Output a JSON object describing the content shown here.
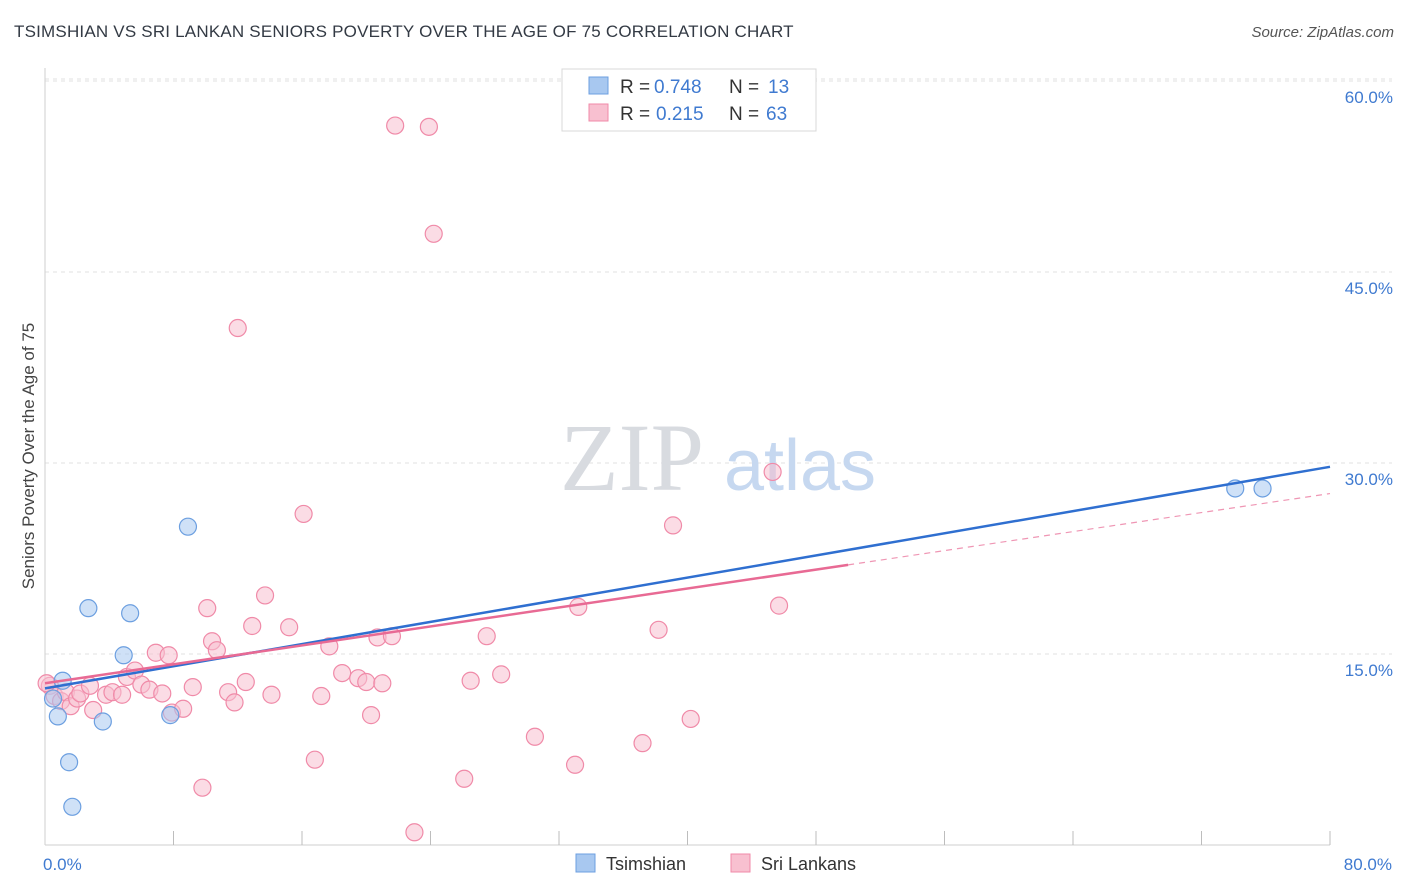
{
  "chart_data": {
    "type": "scatter",
    "title": "TSIMSHIAN VS SRI LANKAN SENIORS POVERTY OVER THE AGE OF 75 CORRELATION CHART",
    "source": "Source: ZipAtlas.com",
    "xlabel": "",
    "ylabel": "Seniors Poverty Over the Age of 75",
    "xlim": [
      0,
      80
    ],
    "ylim": [
      0,
      60
    ],
    "x_tick_labels": [
      "0.0%",
      "80.0%"
    ],
    "y_ticks": [
      15,
      30,
      45,
      60
    ],
    "y_tick_labels": [
      "15.0%",
      "30.0%",
      "45.0%",
      "60.0%"
    ],
    "watermark": {
      "zip": "ZIP",
      "atlas": "atlas"
    },
    "legend": {
      "r_label": "R =",
      "n_label": "N =",
      "entries": [
        {
          "name": "Tsimshian",
          "r": "0.748",
          "n": "13",
          "color": "#a8c8f0",
          "stroke": "#6c9fe0"
        },
        {
          "name": "Sri Lankans",
          "r": "0.215",
          "n": "63",
          "color": "#f8c0d0",
          "stroke": "#f08aa8"
        }
      ]
    },
    "series": [
      {
        "name": "Tsimshian",
        "color": "#a8c8f0",
        "stroke": "#6c9fe0",
        "trend": {
          "x0": 0,
          "y0": 12.3,
          "x1": 80,
          "y1": 29.7,
          "color": "#2f6fd0"
        },
        "points": [
          [
            0.5,
            11.5
          ],
          [
            0.8,
            10.1
          ],
          [
            1.1,
            12.9
          ],
          [
            1.5,
            6.5
          ],
          [
            1.7,
            3.0
          ],
          [
            2.7,
            18.6
          ],
          [
            3.6,
            9.7
          ],
          [
            4.9,
            14.9
          ],
          [
            5.3,
            18.2
          ],
          [
            7.8,
            10.2
          ],
          [
            8.9,
            25.0
          ],
          [
            74.1,
            28.0
          ],
          [
            75.8,
            28.0
          ]
        ]
      },
      {
        "name": "Sri Lankans",
        "color": "#f8c0d0",
        "stroke": "#f08aa8",
        "trend": {
          "x0": 0,
          "y0": 12.7,
          "x1": 50,
          "y1": 22.0,
          "x2": 80,
          "y2": 27.6,
          "color": "#e86a94"
        },
        "points": [
          [
            0.3,
            12.5
          ],
          [
            0.6,
            11.7
          ],
          [
            1.0,
            11.3
          ],
          [
            1.3,
            12.0
          ],
          [
            1.6,
            10.9
          ],
          [
            2.0,
            11.5
          ],
          [
            2.2,
            11.9
          ],
          [
            2.8,
            12.5
          ],
          [
            3.0,
            10.6
          ],
          [
            3.8,
            11.8
          ],
          [
            4.2,
            12.0
          ],
          [
            4.8,
            11.8
          ],
          [
            5.1,
            13.2
          ],
          [
            5.6,
            13.7
          ],
          [
            6.0,
            12.6
          ],
          [
            6.5,
            12.2
          ],
          [
            6.9,
            15.1
          ],
          [
            7.3,
            11.9
          ],
          [
            7.7,
            14.9
          ],
          [
            7.9,
            10.4
          ],
          [
            8.6,
            10.7
          ],
          [
            9.2,
            12.4
          ],
          [
            9.8,
            4.5
          ],
          [
            10.1,
            18.6
          ],
          [
            10.4,
            16.0
          ],
          [
            10.7,
            15.3
          ],
          [
            11.4,
            12.0
          ],
          [
            11.8,
            11.2
          ],
          [
            12.0,
            40.6
          ],
          [
            12.5,
            12.8
          ],
          [
            12.9,
            17.2
          ],
          [
            13.7,
            19.6
          ],
          [
            14.1,
            11.8
          ],
          [
            15.2,
            17.1
          ],
          [
            16.1,
            26.0
          ],
          [
            16.8,
            6.7
          ],
          [
            17.2,
            11.7
          ],
          [
            17.7,
            15.6
          ],
          [
            18.5,
            13.5
          ],
          [
            19.5,
            13.1
          ],
          [
            20.0,
            12.8
          ],
          [
            20.3,
            10.2
          ],
          [
            20.7,
            16.3
          ],
          [
            21.0,
            12.7
          ],
          [
            21.6,
            16.4
          ],
          [
            21.8,
            56.5
          ],
          [
            23.0,
            1.0
          ],
          [
            23.9,
            56.4
          ],
          [
            24.2,
            48.0
          ],
          [
            26.1,
            5.2
          ],
          [
            26.5,
            12.9
          ],
          [
            27.5,
            16.4
          ],
          [
            28.4,
            13.4
          ],
          [
            30.5,
            8.5
          ],
          [
            33.0,
            6.3
          ],
          [
            33.2,
            18.7
          ],
          [
            37.2,
            8.0
          ],
          [
            38.2,
            16.9
          ],
          [
            39.1,
            25.1
          ],
          [
            40.2,
            9.9
          ],
          [
            45.3,
            29.3
          ],
          [
            45.7,
            18.8
          ],
          [
            0.1,
            12.7
          ]
        ]
      }
    ]
  }
}
